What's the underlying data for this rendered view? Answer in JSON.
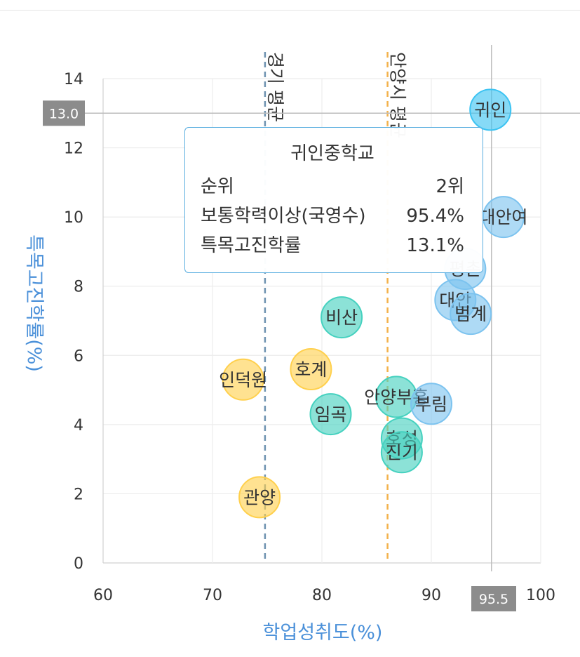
{
  "chart_data": {
    "type": "scatter",
    "xlabel": "학업성취도(%)",
    "ylabel": "특목고진학률(%)",
    "xlim": [
      60,
      100
    ],
    "ylim": [
      0,
      14
    ],
    "xticks": [
      "60",
      "70",
      "80",
      "90",
      "100"
    ],
    "yticks": [
      "0",
      "2",
      "4",
      "6",
      "8",
      "10",
      "12",
      "14"
    ],
    "grid": true,
    "reference_lines": [
      {
        "label": "경기 평균",
        "x": 74.8,
        "color": "#6f93b0"
      },
      {
        "label": "안양시 평균",
        "x": 86.0,
        "color": "#f3b24c"
      }
    ],
    "points": [
      {
        "label": "귀인",
        "x": 95.4,
        "y": 13.1,
        "color": "#3cc3f2"
      },
      {
        "label": "대안여",
        "x": 96.6,
        "y": 10.0,
        "color": "#7cc3ef"
      },
      {
        "label": "평촌",
        "x": 93.1,
        "y": 8.5,
        "color": "#7cc3ef"
      },
      {
        "label": "대안",
        "x": 92.2,
        "y": 7.6,
        "color": "#7cc3ef"
      },
      {
        "label": "범계",
        "x": 93.6,
        "y": 7.2,
        "color": "#7cc3ef"
      },
      {
        "label": "비산",
        "x": 81.8,
        "y": 7.1,
        "color": "#45d1bf"
      },
      {
        "label": "호계",
        "x": 79.0,
        "y": 5.6,
        "color": "#ffd04d"
      },
      {
        "label": "인덕원",
        "x": 72.8,
        "y": 5.3,
        "color": "#ffd04d"
      },
      {
        "label": "안양부흥",
        "x": 86.8,
        "y": 4.8,
        "color": "#45d1bf"
      },
      {
        "label": "부림",
        "x": 90.0,
        "y": 4.6,
        "color": "#7cc3ef"
      },
      {
        "label": "임곡",
        "x": 80.8,
        "y": 4.3,
        "color": "#45d1bf"
      },
      {
        "label": "호성",
        "x": 87.3,
        "y": 3.6,
        "color": "#45d1bf"
      },
      {
        "label": "진기",
        "x": 87.3,
        "y": 3.2,
        "color": "#45d1bf"
      },
      {
        "label": "관양",
        "x": 74.3,
        "y": 1.9,
        "color": "#ffd04d"
      }
    ],
    "crosshair": {
      "x": 95.5,
      "y": 13.0,
      "x_label": "95.5",
      "y_label": "13.0"
    }
  },
  "tooltip": {
    "title": "귀인중학교",
    "rows": [
      {
        "key": "순위",
        "value": "2위"
      },
      {
        "key": "보통학력이상(국영수)",
        "value": "95.4%"
      },
      {
        "key": "특목고진학률",
        "value": "13.1%"
      }
    ]
  },
  "colors": {
    "accent": "#4a90d9",
    "tooltip_border": "#5aaee0",
    "crosshair_tag": "#8c8c8c"
  }
}
